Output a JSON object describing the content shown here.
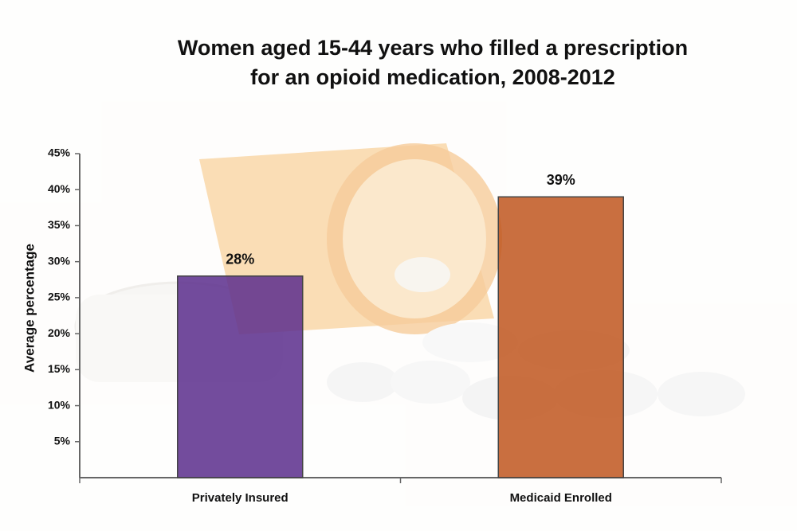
{
  "chart_data": {
    "type": "bar",
    "title": [
      "Women aged 15-44 years who filled a prescription",
      "for an opioid medication, 2008-2012"
    ],
    "y_label": "Average percentage",
    "categories": [
      "Privately Insured",
      "Medicaid Enrolled"
    ],
    "values": [
      28,
      39
    ],
    "value_labels": [
      "28%",
      "39%"
    ],
    "colors": [
      "#5a2d8c",
      "#c0561f"
    ],
    "ylim": [
      0,
      45
    ],
    "yticks": [
      {
        "value": 5,
        "label": "5%"
      },
      {
        "value": 10,
        "label": "10%"
      },
      {
        "value": 15,
        "label": "15%"
      },
      {
        "value": 20,
        "label": "20%"
      },
      {
        "value": 25,
        "label": "25%"
      },
      {
        "value": 30,
        "label": "30%"
      },
      {
        "value": 35,
        "label": "35%"
      },
      {
        "value": 40,
        "label": "40%"
      },
      {
        "value": 45,
        "label": "45%"
      }
    ],
    "grid": false
  }
}
